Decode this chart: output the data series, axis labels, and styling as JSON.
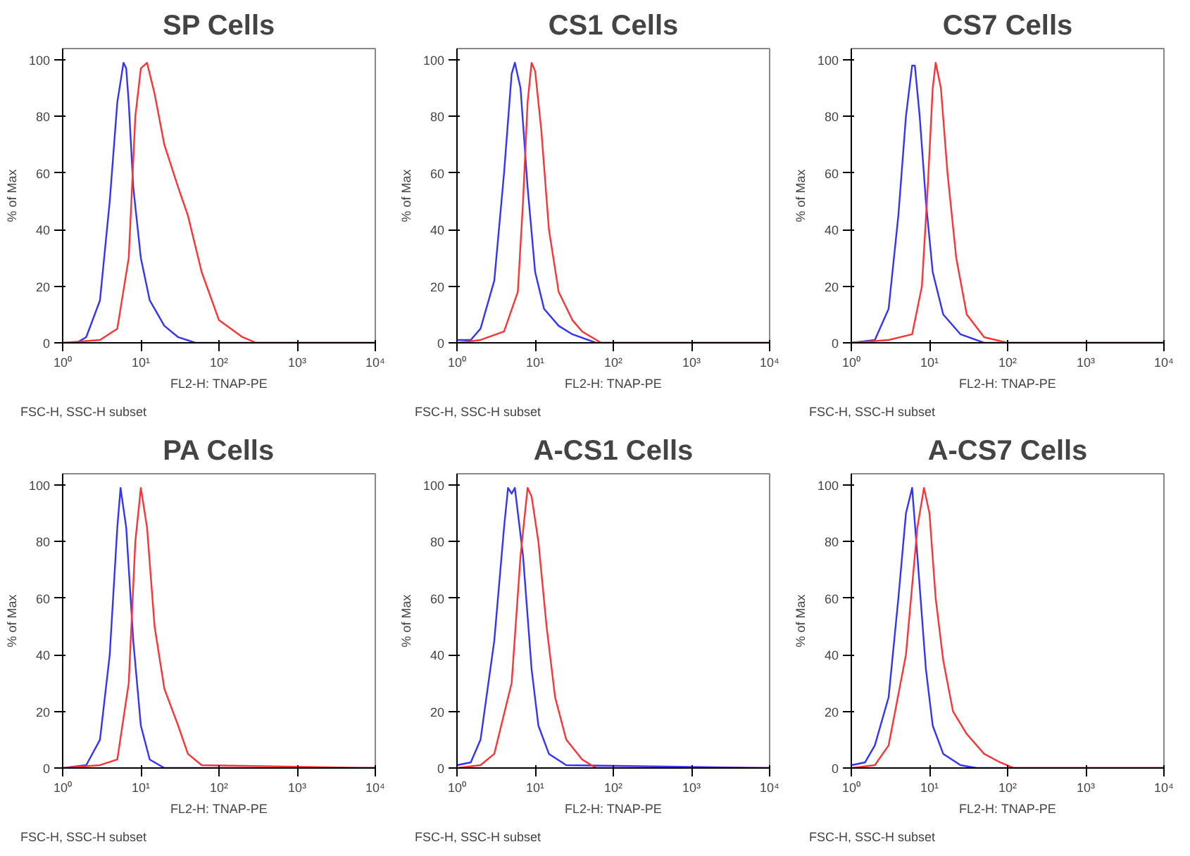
{
  "chart_data": [
    {
      "type": "line",
      "title": "SP Cells",
      "xlabel": "FL2-H: TNAP-PE",
      "ylabel": "% of Max",
      "annotations": [
        "FSC-H, SSC-H subset"
      ],
      "log": "x",
      "grid": false,
      "marker": "none",
      "line_style": "solid",
      "xlim": [
        1,
        10000
      ],
      "ylim": [
        0,
        104
      ],
      "xticks": [
        {
          "value": 1,
          "label": "10⁰"
        },
        {
          "value": 10,
          "label": "10¹"
        },
        {
          "value": 100,
          "label": "10²"
        },
        {
          "value": 1000,
          "label": "10³"
        },
        {
          "value": 10000,
          "label": "10⁴"
        }
      ],
      "yticks": [
        0,
        20,
        40,
        60,
        80,
        100
      ],
      "series": [
        {
          "color": "#3333ff",
          "x": [
            1,
            1.5,
            2,
            3,
            4,
            5,
            6,
            6.5,
            7,
            8,
            10,
            13,
            20,
            30,
            50,
            10000
          ],
          "values": [
            0,
            0,
            2,
            15,
            50,
            85,
            99,
            97,
            85,
            55,
            30,
            15,
            6,
            2,
            0,
            0
          ]
        },
        {
          "color": "#ff3333",
          "x": [
            1,
            3,
            5,
            7,
            8.5,
            10,
            12,
            15,
            20,
            30,
            40,
            60,
            100,
            200,
            300,
            10000
          ],
          "values": [
            0,
            1,
            5,
            30,
            80,
            97,
            99,
            88,
            70,
            55,
            45,
            25,
            8,
            2,
            0,
            0
          ]
        }
      ]
    },
    {
      "type": "line",
      "title": "CS1 Cells",
      "xlabel": "FL2-H: TNAP-PE",
      "ylabel": "% of Max",
      "annotations": [
        "FSC-H, SSC-H subset"
      ],
      "log": "x",
      "grid": false,
      "marker": "none",
      "line_style": "solid",
      "xlim": [
        1,
        10000
      ],
      "ylim": [
        0,
        104
      ],
      "xticks": [
        {
          "value": 1,
          "label": "10⁰"
        },
        {
          "value": 10,
          "label": "10¹"
        },
        {
          "value": 100,
          "label": "10²"
        },
        {
          "value": 1000,
          "label": "10³"
        },
        {
          "value": 10000,
          "label": "10⁴"
        }
      ],
      "yticks": [
        0,
        20,
        40,
        60,
        80,
        100
      ],
      "series": [
        {
          "color": "#3333ff",
          "x": [
            1,
            1.5,
            2,
            3,
            4,
            5,
            5.5,
            6.5,
            8,
            10,
            13,
            20,
            30,
            60,
            10000
          ],
          "values": [
            1,
            1,
            5,
            22,
            60,
            95,
            99,
            90,
            55,
            25,
            12,
            6,
            3,
            0,
            0
          ]
        },
        {
          "color": "#ff3333",
          "x": [
            1,
            2,
            4,
            6,
            7,
            8,
            9,
            10,
            12,
            15,
            20,
            30,
            40,
            70,
            10000
          ],
          "values": [
            0,
            1,
            4,
            18,
            50,
            85,
            99,
            96,
            75,
            40,
            18,
            8,
            4,
            0,
            0
          ]
        }
      ]
    },
    {
      "type": "line",
      "title": "CS7 Cells",
      "xlabel": "FL2-H: TNAP-PE",
      "ylabel": "% of Max",
      "annotations": [
        "FSC-H, SSC-H subset"
      ],
      "log": "x",
      "grid": false,
      "marker": "none",
      "line_style": "solid",
      "xlim": [
        1,
        10000
      ],
      "ylim": [
        0,
        104
      ],
      "xticks": [
        {
          "value": 1,
          "label": "10⁰"
        },
        {
          "value": 10,
          "label": "10¹"
        },
        {
          "value": 100,
          "label": "10²"
        },
        {
          "value": 1000,
          "label": "10³"
        },
        {
          "value": 10000,
          "label": "10⁴"
        }
      ],
      "yticks": [
        0,
        20,
        40,
        60,
        80,
        100
      ],
      "series": [
        {
          "color": "#3333ff",
          "x": [
            1,
            2,
            3,
            4,
            5,
            6,
            6.5,
            7.5,
            9,
            11,
            15,
            25,
            50,
            10000
          ],
          "values": [
            0,
            1,
            12,
            45,
            80,
            98,
            98,
            80,
            50,
            25,
            10,
            3,
            0,
            0
          ]
        },
        {
          "color": "#ff3333",
          "x": [
            1,
            3,
            6,
            8,
            9.5,
            11,
            12,
            14,
            17,
            22,
            30,
            50,
            100,
            10000
          ],
          "values": [
            0,
            1,
            3,
            20,
            55,
            90,
            99,
            90,
            60,
            30,
            10,
            2,
            0,
            0
          ]
        }
      ]
    },
    {
      "type": "line",
      "title": "PA Cells",
      "xlabel": "FL2-H: TNAP-PE",
      "ylabel": "% of Max",
      "annotations": [
        "FSC-H, SSC-H subset"
      ],
      "log": "x",
      "grid": false,
      "marker": "none",
      "line_style": "solid",
      "xlim": [
        1,
        10000
      ],
      "ylim": [
        0,
        104
      ],
      "xticks": [
        {
          "value": 1,
          "label": "10⁰"
        },
        {
          "value": 10,
          "label": "10¹"
        },
        {
          "value": 100,
          "label": "10²"
        },
        {
          "value": 1000,
          "label": "10³"
        },
        {
          "value": 10000,
          "label": "10⁴"
        }
      ],
      "yticks": [
        0,
        20,
        40,
        60,
        80,
        100
      ],
      "series": [
        {
          "color": "#3333ff",
          "x": [
            1,
            2,
            3,
            4,
            5,
            5.5,
            6.5,
            8,
            10,
            13,
            20,
            10000
          ],
          "values": [
            0,
            1,
            10,
            40,
            85,
            99,
            85,
            45,
            15,
            3,
            0,
            0
          ]
        },
        {
          "color": "#ff3333",
          "x": [
            1,
            3,
            5,
            7,
            8.5,
            10,
            12,
            15,
            20,
            30,
            40,
            60,
            10000
          ],
          "values": [
            0,
            1,
            3,
            30,
            80,
            99,
            85,
            50,
            28,
            15,
            5,
            1,
            0
          ]
        }
      ]
    },
    {
      "type": "line",
      "title": "A-CS1 Cells",
      "xlabel": "FL2-H: TNAP-PE",
      "ylabel": "% of Max",
      "annotations": [
        "FSC-H, SSC-H subset"
      ],
      "log": "x",
      "grid": false,
      "marker": "none",
      "line_style": "solid",
      "xlim": [
        1,
        10000
      ],
      "ylim": [
        0,
        104
      ],
      "xticks": [
        {
          "value": 1,
          "label": "10⁰"
        },
        {
          "value": 10,
          "label": "10¹"
        },
        {
          "value": 100,
          "label": "10²"
        },
        {
          "value": 1000,
          "label": "10³"
        },
        {
          "value": 10000,
          "label": "10⁴"
        }
      ],
      "yticks": [
        0,
        20,
        40,
        60,
        80,
        100
      ],
      "series": [
        {
          "color": "#3333ff",
          "x": [
            1,
            1.5,
            2,
            3,
            4,
            4.5,
            5,
            5.5,
            7,
            9,
            11,
            15,
            25,
            10000
          ],
          "values": [
            1,
            2,
            10,
            45,
            85,
            99,
            97,
            99,
            75,
            35,
            15,
            5,
            1,
            0
          ]
        },
        {
          "color": "#ff3333",
          "x": [
            1,
            2,
            3,
            5,
            6.5,
            8,
            9,
            11,
            14,
            18,
            25,
            40,
            60,
            10000
          ],
          "values": [
            0,
            1,
            5,
            30,
            75,
            99,
            96,
            80,
            50,
            25,
            10,
            3,
            0,
            0
          ]
        }
      ]
    },
    {
      "type": "line",
      "title": "A-CS7 Cells",
      "xlabel": "FL2-H: TNAP-PE",
      "ylabel": "% of Max",
      "annotations": [
        "FSC-H, SSC-H subset"
      ],
      "log": "x",
      "grid": false,
      "marker": "none",
      "line_style": "solid",
      "xlim": [
        1,
        10000
      ],
      "ylim": [
        0,
        104
      ],
      "xticks": [
        {
          "value": 1,
          "label": "10⁰"
        },
        {
          "value": 10,
          "label": "10¹"
        },
        {
          "value": 100,
          "label": "10²"
        },
        {
          "value": 1000,
          "label": "10³"
        },
        {
          "value": 10000,
          "label": "10⁴"
        }
      ],
      "yticks": [
        0,
        20,
        40,
        60,
        80,
        100
      ],
      "series": [
        {
          "color": "#3333ff",
          "x": [
            1,
            1.5,
            2,
            3,
            4,
            5,
            6,
            7,
            9,
            11,
            15,
            25,
            40,
            10000
          ],
          "values": [
            1,
            2,
            8,
            25,
            60,
            90,
            99,
            75,
            35,
            15,
            5,
            1,
            0,
            0
          ]
        },
        {
          "color": "#ff3333",
          "x": [
            1,
            2,
            3,
            5,
            7,
            8.5,
            10,
            12,
            15,
            20,
            30,
            50,
            80,
            120,
            10000
          ],
          "values": [
            0,
            1,
            8,
            40,
            85,
            99,
            90,
            60,
            38,
            20,
            12,
            5,
            2,
            0,
            0
          ]
        }
      ]
    }
  ]
}
